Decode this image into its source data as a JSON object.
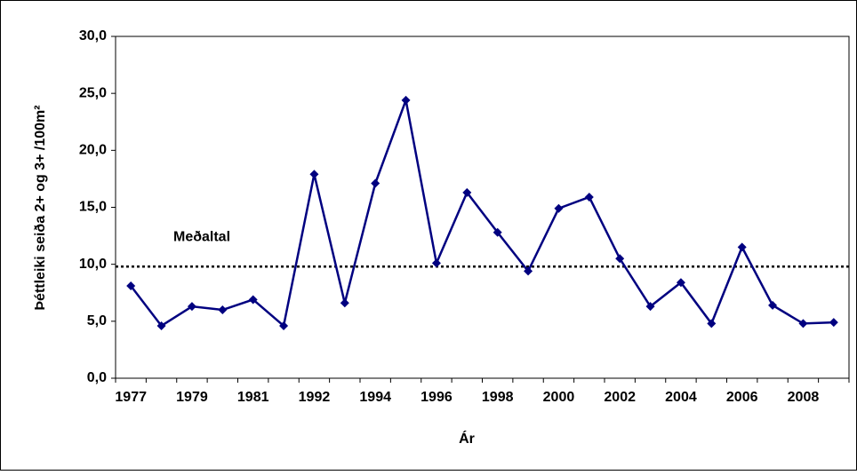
{
  "chart_data": {
    "type": "line",
    "ylabel": "Þéttleiki seiða 2+ og 3+ /100m²",
    "xlabel": "Ár",
    "annotation": "Meðaltal",
    "mean": 9.8,
    "categories": [
      "1977",
      null,
      "1979",
      null,
      "1981",
      null,
      "1992",
      null,
      "1994",
      null,
      "1996",
      null,
      "1998",
      null,
      "2000",
      null,
      "2002",
      null,
      "2004",
      null,
      "2006",
      null,
      "2008",
      null
    ],
    "series": [
      {
        "color": "#000080",
        "values": [
          8.1,
          4.6,
          6.3,
          6.0,
          6.9,
          4.6,
          17.9,
          6.6,
          17.1,
          24.4,
          10.1,
          16.3,
          12.8,
          9.4,
          14.9,
          15.9,
          10.5,
          6.3,
          8.4,
          4.8,
          11.5,
          6.4,
          4.8,
          4.9
        ]
      }
    ],
    "ylim": [
      0,
      30
    ],
    "yticks": [
      {
        "value": 0,
        "label": "0,0"
      },
      {
        "value": 5,
        "label": "5,0"
      },
      {
        "value": 10,
        "label": "10,0"
      },
      {
        "value": 15,
        "label": "15,0"
      },
      {
        "value": 20,
        "label": "20,0"
      },
      {
        "value": 25,
        "label": "25,0"
      },
      {
        "value": 30,
        "label": "30,0"
      }
    ]
  }
}
